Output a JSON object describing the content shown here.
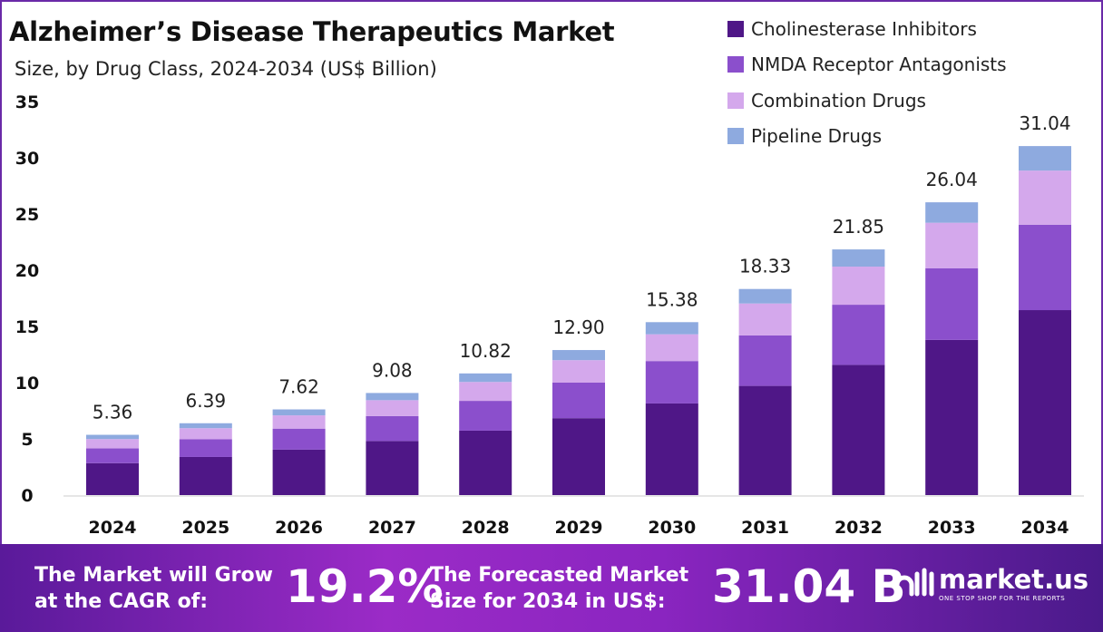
{
  "chart_data": {
    "type": "bar",
    "stacked": true,
    "title": "Alzheimer’s Disease Therapeutics Market",
    "subtitle": "Size, by Drug Class, 2024-2034 (US$ Billion)",
    "categories": [
      "2024",
      "2025",
      "2026",
      "2027",
      "2028",
      "2029",
      "2030",
      "2031",
      "2032",
      "2033",
      "2034"
    ],
    "totals": [
      "5.36",
      "6.39",
      "7.62",
      "9.08",
      "10.82",
      "12.90",
      "15.38",
      "18.33",
      "21.85",
      "26.04",
      "31.04"
    ],
    "series": [
      {
        "name": "Cholinesterase Inhibitors",
        "color": "#4f1787",
        "values": [
          2.84,
          3.39,
          4.04,
          4.81,
          5.73,
          6.84,
          8.15,
          9.71,
          11.58,
          13.8,
          16.45
        ]
      },
      {
        "name": "NMDA Receptor Antagonists",
        "color": "#8b4fcc",
        "values": [
          1.31,
          1.57,
          1.87,
          2.22,
          2.65,
          3.16,
          3.77,
          4.49,
          5.35,
          6.38,
          7.6
        ]
      },
      {
        "name": "Combination Drugs",
        "color": "#d4a8ec",
        "values": [
          0.83,
          0.99,
          1.18,
          1.41,
          1.68,
          2.0,
          2.38,
          2.84,
          3.39,
          4.04,
          4.81
        ]
      },
      {
        "name": "Pipeline Drugs",
        "color": "#8eaadf",
        "values": [
          0.38,
          0.44,
          0.53,
          0.64,
          0.76,
          0.9,
          1.08,
          1.29,
          1.53,
          1.82,
          2.18
        ]
      }
    ],
    "yticks": [
      "0",
      "5",
      "10",
      "15",
      "20",
      "25",
      "30",
      "35"
    ],
    "ylim": [
      0,
      35
    ],
    "grid": false,
    "legend": "top-right"
  },
  "banner": {
    "cagr_label_1": "The Market will Grow",
    "cagr_label_2": "at the CAGR of:",
    "cagr_value": "19.2%",
    "forecast_label_1": "The Forecasted Market",
    "forecast_label_2": "Size for 2034 in US$:",
    "forecast_value": "31.04 B",
    "logo_name": "market.us",
    "logo_tagline": "ONE STOP SHOP FOR THE REPORTS"
  }
}
